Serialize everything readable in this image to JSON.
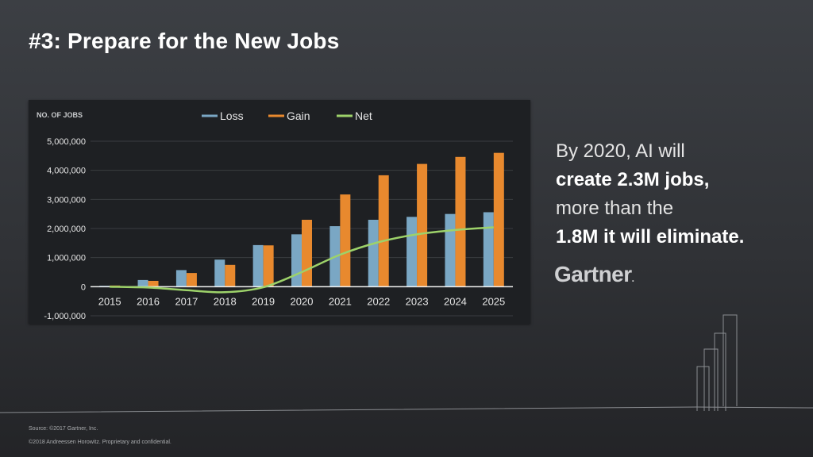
{
  "slide": {
    "title": "#3: Prepare for the New Jobs",
    "source": "Source: ©2017 Gartner, Inc.",
    "copyright": "©2018 Andreessen Horowitz. Proprietary and confidential.",
    "logo": "Gartner",
    "logo_mark": "."
  },
  "callout": {
    "line1": "By 2020, AI will",
    "line2_bold": "create 2.3M jobs,",
    "line3": "more than the",
    "line4_bold": "1.8M it will eliminate."
  },
  "colors": {
    "loss": "#7aa7c4",
    "gain": "#e8892e",
    "net": "#9dd26a",
    "grid": "#3a3d41",
    "axis_text": "#e6e6e6"
  },
  "chart_data": {
    "type": "bar",
    "ylabel": "NO. OF JOBS",
    "categories": [
      "2015",
      "2016",
      "2017",
      "2018",
      "2019",
      "2020",
      "2021",
      "2022",
      "2023",
      "2024",
      "2025"
    ],
    "yticks": [
      {
        "value": 5000000,
        "label": "5,000,000"
      },
      {
        "value": 4000000,
        "label": "4,000,000"
      },
      {
        "value": 3000000,
        "label": "3,000,000"
      },
      {
        "value": 2000000,
        "label": "2,000,000"
      },
      {
        "value": 1000000,
        "label": "1,000,000"
      },
      {
        "value": 0,
        "label": "0"
      },
      {
        "value": -1000000,
        "label": "-1,000,000"
      }
    ],
    "ylim": [
      -1000000,
      5000000
    ],
    "grid": true,
    "legend_position": "top-center",
    "series": [
      {
        "name": "Loss",
        "type": "bar",
        "values": [
          30000,
          230000,
          570000,
          930000,
          1430000,
          1800000,
          2080000,
          2300000,
          2400000,
          2500000,
          2560000
        ]
      },
      {
        "name": "Gain",
        "type": "bar",
        "values": [
          40000,
          200000,
          470000,
          750000,
          1420000,
          2300000,
          3170000,
          3830000,
          4220000,
          4460000,
          4600000
        ]
      },
      {
        "name": "Net",
        "type": "line",
        "values": [
          0,
          -30000,
          -120000,
          -190000,
          -20000,
          500000,
          1100000,
          1530000,
          1800000,
          1950000,
          2040000
        ]
      }
    ]
  }
}
